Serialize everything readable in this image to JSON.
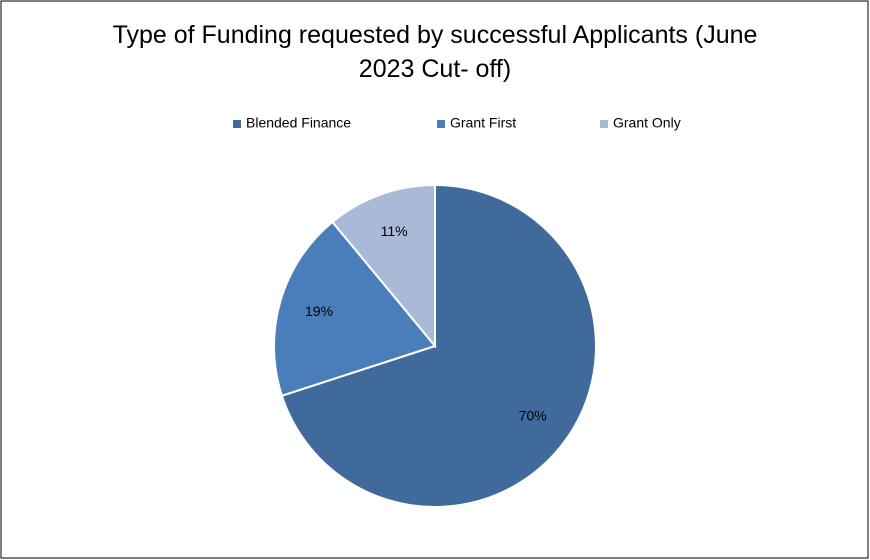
{
  "chart_data": {
    "type": "pie",
    "title": "Type of Funding requested by successful Applicants (June 2023 Cut- off)",
    "categories": [
      "Blended Finance",
      "Grant First",
      "Grant Only"
    ],
    "values": [
      70,
      19,
      11
    ],
    "value_labels": [
      "70%",
      "19%",
      "11%"
    ],
    "colors": [
      "#416a9c",
      "#4a7ebb",
      "#a9b9d8"
    ],
    "legend": "top"
  }
}
